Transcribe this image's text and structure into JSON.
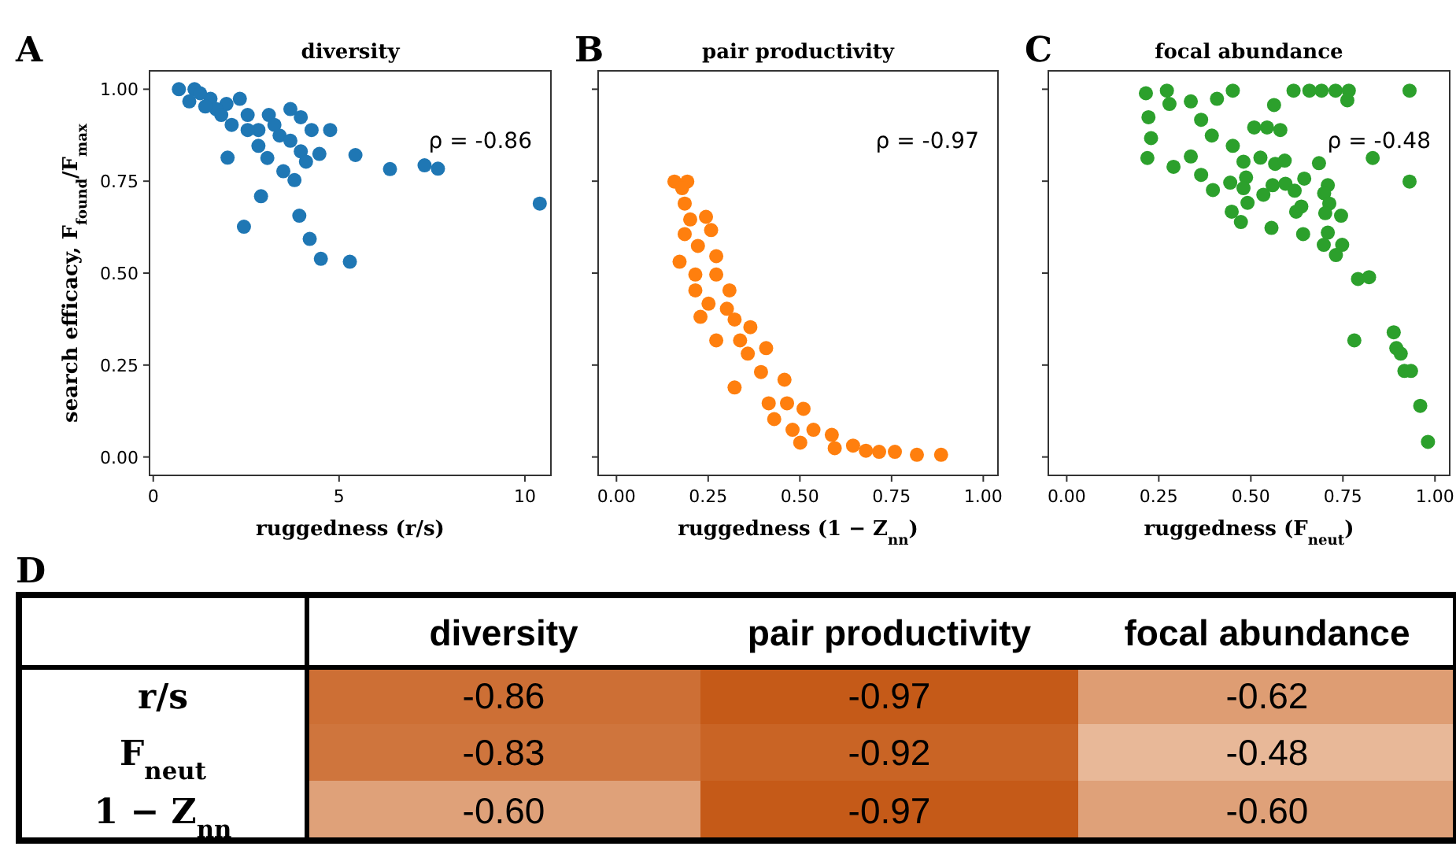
{
  "chart_data": [
    {
      "type": "scatter",
      "title": "diversity",
      "xlabel": "ruggedness (r/s)",
      "ylabel": "search efficacy, F$_{found}$/F$_{max}$",
      "annotations": [
        "A",
        "ρ = -0.86"
      ],
      "marker": "circle",
      "grid": false,
      "xlim": [
        -0.1,
        10.7
      ],
      "xticks": [
        0,
        5,
        10
      ],
      "ylim": [
        -0.05,
        1.05
      ],
      "yticks": [
        {
          "value": 0,
          "label": "0.00"
        },
        0.25,
        {
          "value": 0.5,
          "label": "0.50"
        },
        0.75,
        {
          "value": 1,
          "label": "1.00"
        }
      ],
      "series": [
        {
          "color": "#1f77b4",
          "x": [
            0.69,
            1.11,
            0.97,
            1.54,
            1.97,
            2.33,
            2.54,
            3.11,
            3.69,
            3.97,
            2.11,
            2.83,
            3.4,
            4.26,
            4.76,
            2.83,
            3.97,
            4.47,
            4.11,
            2.0,
            3.07,
            5.44,
            3.5,
            3.8,
            6.37,
            7.3,
            7.66,
            10.4,
            2.9,
            2.44,
            3.93,
            4.21,
            4.51,
            5.29,
            1.26,
            1.69,
            3.26,
            1.83,
            2.54,
            3.69,
            1.4
          ],
          "values": [
            1.0,
            1.0,
            0.967,
            0.974,
            0.96,
            0.974,
            0.93,
            0.93,
            0.946,
            0.924,
            0.903,
            0.889,
            0.874,
            0.889,
            0.889,
            0.846,
            0.831,
            0.824,
            0.803,
            0.814,
            0.813,
            0.821,
            0.777,
            0.753,
            0.783,
            0.793,
            0.784,
            0.689,
            0.709,
            0.626,
            0.656,
            0.593,
            0.539,
            0.531,
            0.989,
            0.946,
            0.903,
            0.93,
            0.889,
            0.86,
            0.953
          ]
        }
      ]
    },
    {
      "type": "scatter",
      "title": "pair productivity",
      "xlabel": "ruggedness (1 − Z$_{nn}$)",
      "annotations": [
        "B",
        "ρ = -0.97"
      ],
      "marker": "circle",
      "grid": false,
      "tick_labels": "x",
      "xlim": [
        -0.05,
        1.04
      ],
      "xticks": [
        {
          "value": 0,
          "label": "0.00"
        },
        0.25,
        {
          "value": 0.5,
          "label": "0.50"
        },
        0.75,
        {
          "value": 1,
          "label": "1.00"
        }
      ],
      "ylim": [
        -0.05,
        1.05
      ],
      "yticks": [
        {
          "value": 0,
          "label": null
        },
        {
          "value": 0.25,
          "label": null
        },
        {
          "value": 0.5,
          "label": null
        },
        {
          "value": 0.75,
          "label": null
        },
        {
          "value": 1,
          "label": null
        }
      ],
      "series": [
        {
          "color": "#ff7f0e",
          "x": [
            0.158,
            0.193,
            0.179,
            0.186,
            0.244,
            0.201,
            0.258,
            0.186,
            0.172,
            0.222,
            0.272,
            0.215,
            0.272,
            0.308,
            0.215,
            0.251,
            0.229,
            0.301,
            0.322,
            0.365,
            0.272,
            0.337,
            0.322,
            0.358,
            0.408,
            0.394,
            0.458,
            0.415,
            0.465,
            0.51,
            0.43,
            0.48,
            0.537,
            0.501,
            0.587,
            0.595,
            0.645,
            0.68,
            0.716,
            0.759,
            0.819,
            0.885
          ],
          "values": [
            0.749,
            0.749,
            0.731,
            0.689,
            0.653,
            0.646,
            0.617,
            0.606,
            0.531,
            0.574,
            0.546,
            0.496,
            0.496,
            0.453,
            0.453,
            0.417,
            0.381,
            0.403,
            0.374,
            0.353,
            0.317,
            0.317,
            0.189,
            0.281,
            0.296,
            0.231,
            0.21,
            0.146,
            0.146,
            0.131,
            0.103,
            0.074,
            0.074,
            0.039,
            0.06,
            0.024,
            0.031,
            0.017,
            0.014,
            0.014,
            0.006,
            0.006
          ]
        }
      ]
    },
    {
      "type": "scatter",
      "title": "focal abundance",
      "xlabel": "ruggedness (F$_{neut}$)",
      "annotations": [
        "C",
        "ρ = -0.48"
      ],
      "marker": "circle",
      "grid": false,
      "tick_labels": "x",
      "xlim": [
        -0.05,
        1.04
      ],
      "xticks": [
        {
          "value": 0,
          "label": "0.00"
        },
        0.25,
        {
          "value": 0.5,
          "label": "0.50"
        },
        0.75,
        {
          "value": 1,
          "label": "1.00"
        }
      ],
      "ylim": [
        -0.05,
        1.05
      ],
      "yticks": [
        {
          "value": 0,
          "label": null
        },
        {
          "value": 0.25,
          "label": null
        },
        {
          "value": 0.5,
          "label": null
        },
        {
          "value": 0.75,
          "label": null
        },
        {
          "value": 1,
          "label": null
        }
      ],
      "series": [
        {
          "color": "#2ca02c",
          "x": [
            0.215,
            0.272,
            0.279,
            0.222,
            0.229,
            0.219,
            0.29,
            0.337,
            0.365,
            0.408,
            0.451,
            0.337,
            0.394,
            0.365,
            0.397,
            0.444,
            0.451,
            0.48,
            0.487,
            0.48,
            0.491,
            0.448,
            0.473,
            0.509,
            0.544,
            0.58,
            0.563,
            0.526,
            0.534,
            0.559,
            0.566,
            0.592,
            0.594,
            0.619,
            0.645,
            0.623,
            0.637,
            0.556,
            0.642,
            0.616,
            0.659,
            0.692,
            0.73,
            0.766,
            0.762,
            0.685,
            0.709,
            0.699,
            0.713,
            0.702,
            0.745,
            0.709,
            0.698,
            0.748,
            0.731,
            0.831,
            0.931,
            0.931,
            0.791,
            0.821,
            0.781,
            0.888,
            0.895,
            0.907,
            0.917,
            0.935,
            0.96,
            0.981
          ],
          "values": [
            0.989,
            0.996,
            0.96,
            0.924,
            0.867,
            0.813,
            0.789,
            0.967,
            0.917,
            0.974,
            0.996,
            0.817,
            0.874,
            0.767,
            0.726,
            0.746,
            0.846,
            0.803,
            0.76,
            0.731,
            0.691,
            0.667,
            0.639,
            0.896,
            0.896,
            0.889,
            0.957,
            0.814,
            0.713,
            0.739,
            0.797,
            0.806,
            0.743,
            0.724,
            0.757,
            0.667,
            0.681,
            0.623,
            0.606,
            0.996,
            0.996,
            0.996,
            0.996,
            0.996,
            0.97,
            0.799,
            0.739,
            0.717,
            0.689,
            0.663,
            0.656,
            0.61,
            0.577,
            0.577,
            0.549,
            0.813,
            0.996,
            0.749,
            0.484,
            0.489,
            0.317,
            0.339,
            0.296,
            0.281,
            0.234,
            0.234,
            0.139,
            0.041
          ]
        }
      ]
    },
    {
      "type": "heatmap",
      "annotations": [
        "D"
      ],
      "categories": [
        "diversity",
        "pair productivity",
        "focal abundance"
      ],
      "y_categories": [
        "r/s",
        "F$_{neut}$",
        "1 − Z$_{nn}$"
      ],
      "cells": [
        [
          -0.86,
          -0.97,
          -0.62
        ],
        [
          -0.83,
          -0.92,
          -0.48
        ],
        [
          -0.6,
          -0.97,
          -0.6
        ]
      ],
      "cell_labels": [
        [
          "-0.86",
          "-0.97",
          "-0.62"
        ],
        [
          "-0.83",
          "-0.92",
          "-0.48"
        ],
        [
          "-0.60",
          "-0.97",
          "-0.60"
        ]
      ],
      "colors": [
        "#c55a18",
        "#e8b898"
      ]
    }
  ]
}
